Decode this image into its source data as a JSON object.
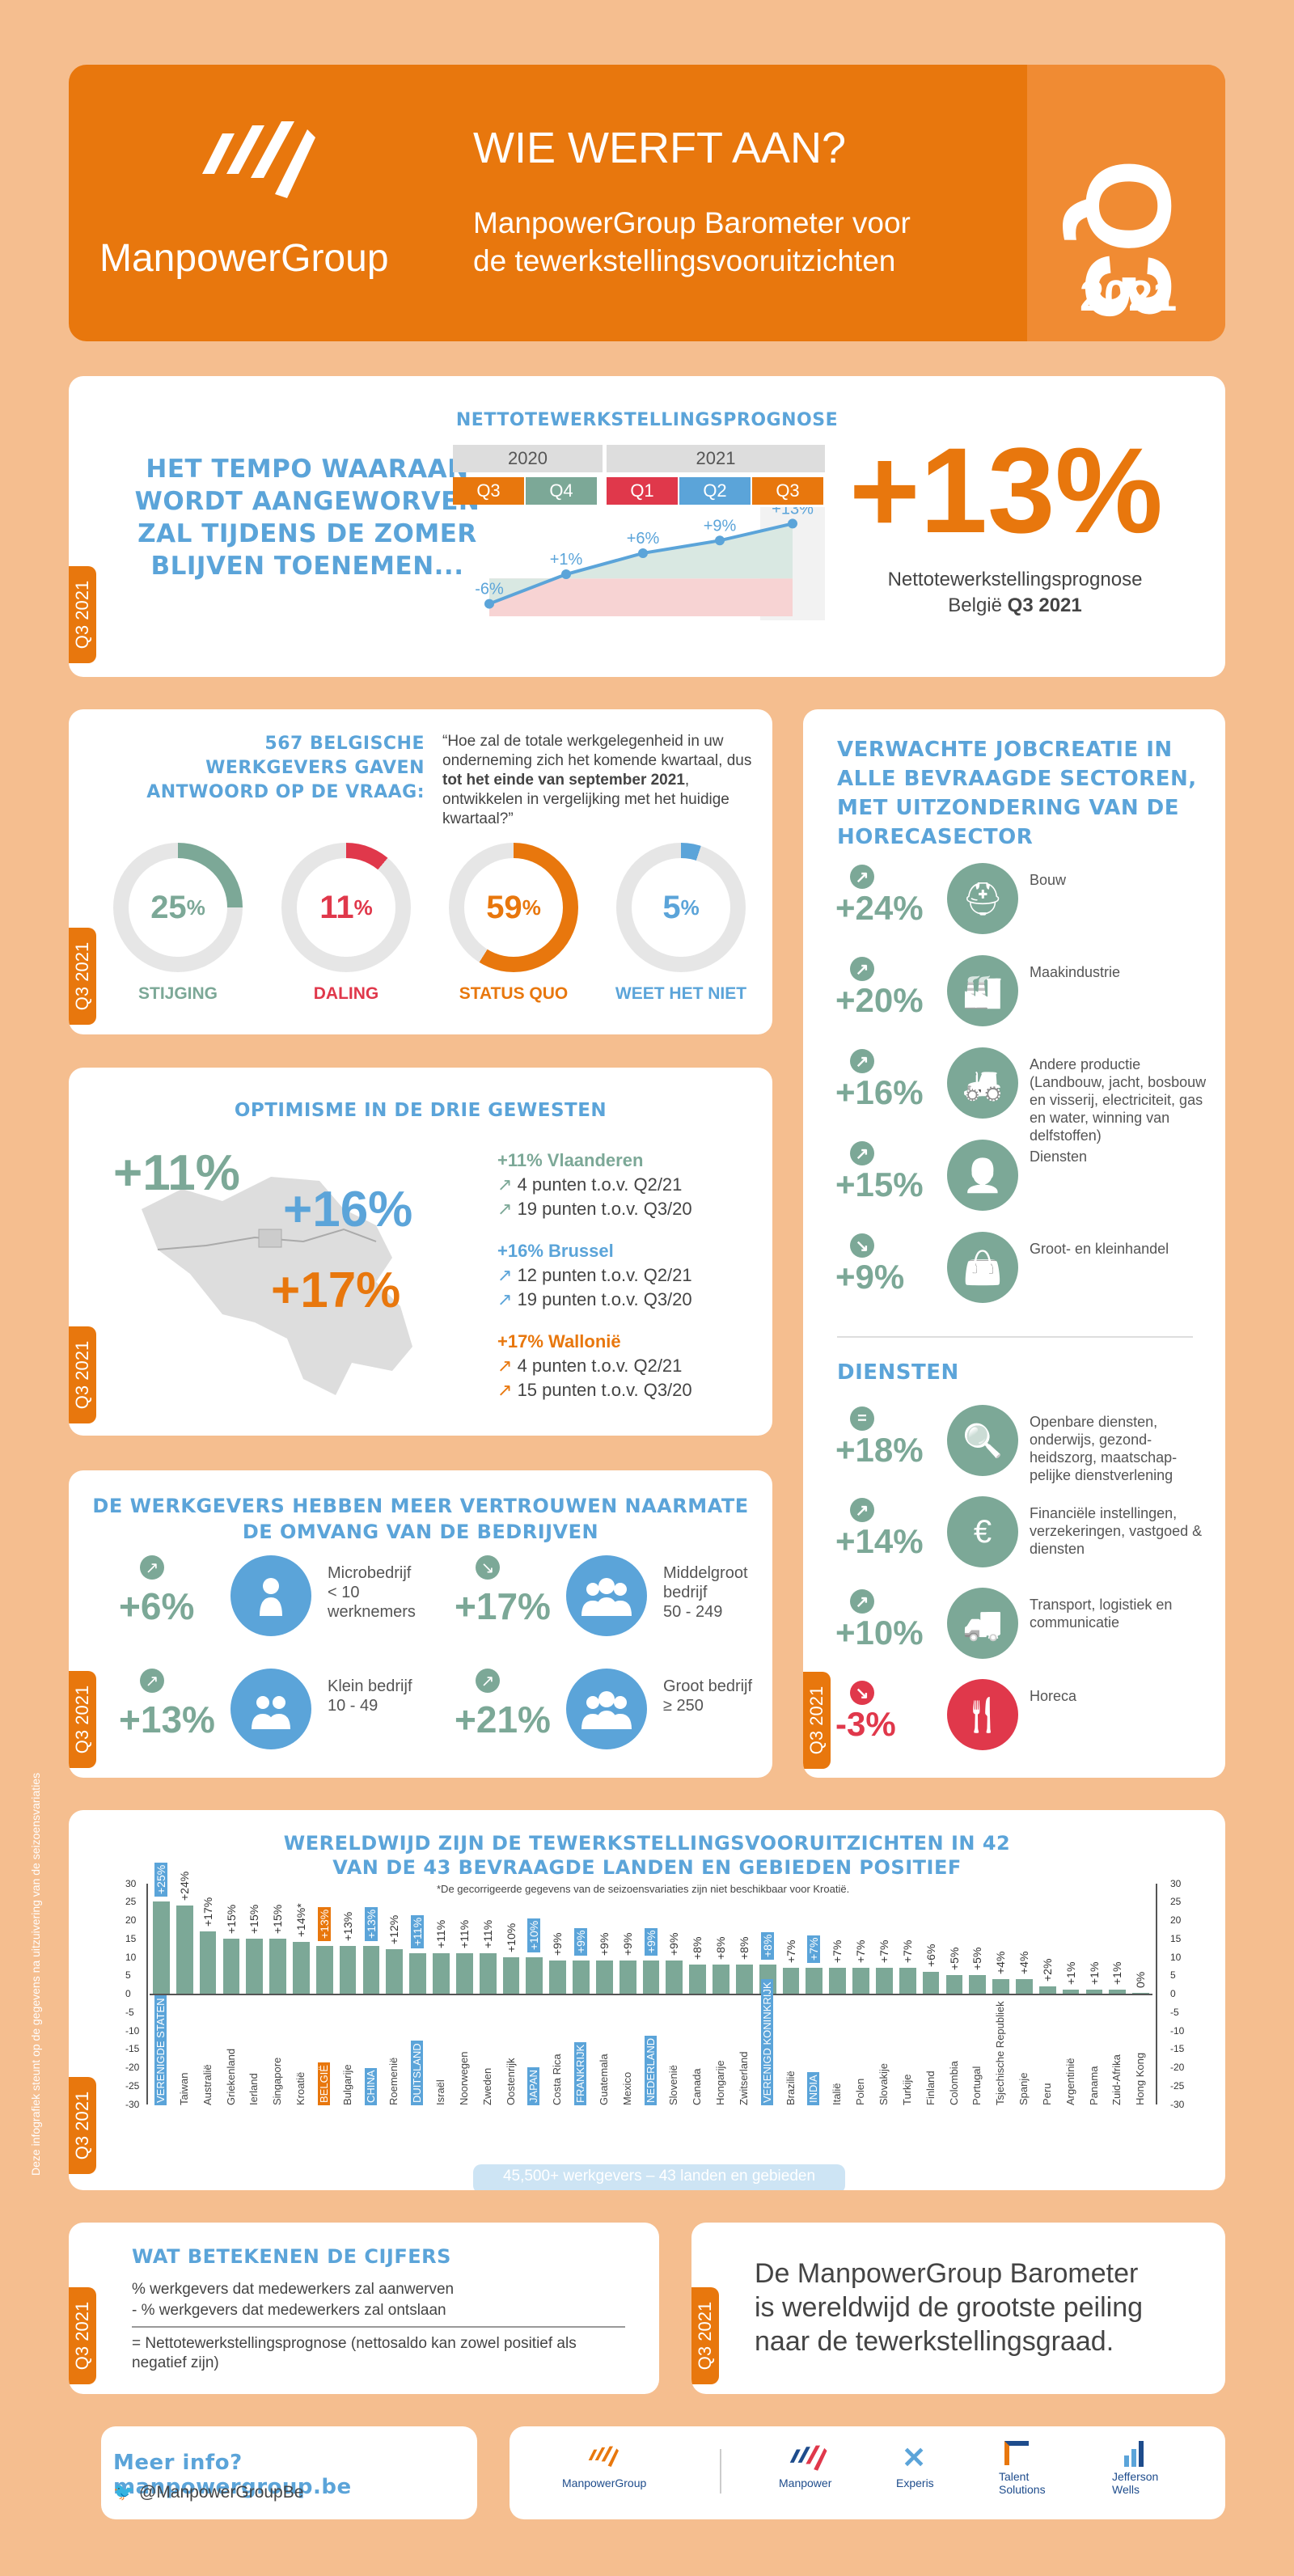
{
  "header": {
    "brand": "ManpowerGroup",
    "title": "WIE WERFT AAN?",
    "subtitle_line1": "ManpowerGroup Barometer voor",
    "subtitle_line2": "de tewerkstellingsvooruitzichten",
    "quarter": "Q3",
    "year": "2021"
  },
  "q3_tab": "Q3 2021",
  "forecast": {
    "tagline_1": "HET TEMPO WAARAAN",
    "tagline_2": "WORDT AANGEWORVEN",
    "tagline_3": "ZAL TIJDENS DE ZOMER",
    "tagline_4": "BLIJVEN TOENEMEN...",
    "chart_title": "NETTOTEWERKSTELLINGSPROGNOSE",
    "year_2020": "2020",
    "year_2021": "2021",
    "quarters": [
      "Q3",
      "Q4",
      "Q1",
      "Q2",
      "Q3"
    ],
    "point_labels": [
      "-6%",
      "+1%",
      "+6%",
      "+9%",
      "+13%"
    ],
    "big_value": "+13%",
    "big_caption_1": "Nettotewerkstellingsprognose",
    "big_caption_2a": "België ",
    "big_caption_2b": "Q3 2021"
  },
  "chart_data": [
    {
      "type": "line",
      "title": "NETTOTEWERKSTELLINGSPROGNOSE",
      "categories": [
        "Q3 2020",
        "Q4 2020",
        "Q1 2021",
        "Q2 2021",
        "Q3 2021"
      ],
      "values": [
        -6,
        1,
        6,
        9,
        13
      ]
    },
    {
      "type": "bar",
      "title": "WERELDWIJD ZIJN DE TEWERKSTELLINGSVOORUITZICHTEN IN 42 VAN DE 43 BEVRAAGDE LANDEN EN GEBIEDEN POSITIEF",
      "ylim": [
        -30,
        30
      ],
      "categories": [
        "VERENIGDE STATEN",
        "Taiwan",
        "Australië",
        "Griekenland",
        "Ierland",
        "Singapore",
        "Kroatië",
        "BELGIË",
        "Bulgarije",
        "CHINA",
        "Roemenië",
        "DUITSLAND",
        "Israël",
        "Noorwegen",
        "Zweden",
        "Oostenrijk",
        "JAPAN",
        "Costa Rica",
        "FRANKRIJK",
        "Guatemala",
        "Mexico",
        "NEDERLAND",
        "Slovenië",
        "Canada",
        "Hongarije",
        "Zwitserland",
        "VERENIGD KONINKRIJK",
        "Brazilië",
        "INDIA",
        "Italië",
        "Polen",
        "Slovakije",
        "Turkije",
        "Finland",
        "Colombia",
        "Portugal",
        "Tsjechische Republiek",
        "Spanje",
        "Peru",
        "Argentinië",
        "Panama",
        "Zuid-Afrika",
        "Hong Kong"
      ],
      "values": [
        25,
        24,
        17,
        15,
        15,
        15,
        14,
        13,
        13,
        13,
        12,
        11,
        11,
        11,
        11,
        10,
        10,
        9,
        9,
        9,
        9,
        9,
        9,
        8,
        8,
        8,
        8,
        7,
        7,
        7,
        7,
        7,
        7,
        6,
        5,
        5,
        4,
        4,
        2,
        1,
        1,
        1,
        0
      ],
      "value_labels": [
        "+25%",
        "+24%",
        "+17%",
        "+15%",
        "+15%",
        "+15%",
        "+14%*",
        "+13%",
        "+13%",
        "+13%",
        "+12%",
        "+11%",
        "+11%",
        "+11%",
        "+11%",
        "+10%",
        "+10%",
        "+9%",
        "+9%",
        "+9%",
        "+9%",
        "+9%",
        "+9%",
        "+8%",
        "+8%",
        "+8%",
        "+8%",
        "+7%",
        "+7%",
        "+7%",
        "+7%",
        "+7%",
        "+7%",
        "+6%",
        "+5%",
        "+5%",
        "+4%",
        "+4%",
        "+2%",
        "+1%",
        "+1%",
        "+1%",
        "0%"
      ],
      "highlight_blue": [
        0,
        9,
        11,
        16,
        18,
        21,
        26,
        28
      ],
      "highlight_orange": [
        7
      ]
    }
  ],
  "survey": {
    "title_1": "567 BELGISCHE",
    "title_2": "WERKGEVERS GAVEN",
    "title_3": "ANTWOORD OP DE VRAAG:",
    "question_a": "“Hoe zal de totale werkgelegenheid in uw onderneming zich het komende kwartaal, dus ",
    "question_b": "tot het einde van september 2021",
    "question_c": ", ontwikkelen in vergelijking met het huidige kwartaal?”",
    "items": [
      {
        "value": "25",
        "pct": "%",
        "label": "STIJGING",
        "fraction": 0.25,
        "color": "#7ca897"
      },
      {
        "value": "11",
        "pct": "%",
        "label": "DALING",
        "fraction": 0.11,
        "color": "#e0384b"
      },
      {
        "value": "59",
        "pct": "%",
        "label": "STATUS QUO",
        "fraction": 0.59,
        "color": "#e8770d"
      },
      {
        "value": "5",
        "pct": "%",
        "label": "WEET HET NIET",
        "fraction": 0.05,
        "color": "#5ba4d9"
      }
    ]
  },
  "regions": {
    "title": "OPTIMISME IN DE DRIE GEWESTEN",
    "map_flanders": "+11%",
    "map_brussels": "+16%",
    "map_wallonia": "+17%",
    "flanders_head": "+11% Vlaanderen",
    "flanders_1": "4 punten t.o.v. Q2/21",
    "flanders_2": "19 punten t.o.v. Q3/20",
    "brussels_head": "+16% Brussel",
    "brussels_1": "12 punten t.o.v. Q2/21",
    "brussels_2": "19 punten t.o.v. Q3/20",
    "wallonia_head": "+17% Wallonië",
    "wallonia_1": "4 punten t.o.v. Q2/21",
    "wallonia_2": "15 punten t.o.v. Q3/20"
  },
  "size": {
    "title_1": "DE WERKGEVERS HEBBEN MEER VERTROUWEN NAARMATE",
    "title_2": "DE OMVANG VAN DE BEDRIJVEN",
    "items": [
      {
        "value": "+6%",
        "l1": "Microbedrijf",
        "l2": "< 10",
        "l3": "werknemers"
      },
      {
        "value": "+17%",
        "l1": "Middelgroot",
        "l2": "bedrijf",
        "l3": "50 - 249"
      },
      {
        "value": "+13%",
        "l1": "Klein bedrijf",
        "l2": "10 - 49",
        "l3": ""
      },
      {
        "value": "+21%",
        "l1": "Groot bedrijf",
        "l2": "≥ 250",
        "l3": ""
      }
    ]
  },
  "sectors": {
    "title_1": "VERWACHTE JOBCREATIE IN",
    "title_2": "ALLE BEVRAAGDE SECTOREN,",
    "title_3": "MET UITZONDERING VAN DE",
    "title_4": "HORECASECTOR",
    "items": [
      {
        "value": "+24%",
        "text": "Bouw",
        "icon": "helmet-icon"
      },
      {
        "value": "+20%",
        "text": "Maakindustrie",
        "icon": "factory-icon"
      },
      {
        "value": "+16%",
        "text": "Andere productie (Landbouw, jacht, bosbouw en visserij, electriciteit, gas en water, winning van delfstoffen)",
        "icon": "tractor-icon"
      },
      {
        "value": "+15%",
        "text": "Diensten",
        "icon": "person-search-icon"
      },
      {
        "value": "+9%",
        "text": "Groot- en kleinhandel",
        "icon": "shopping-bag-icon"
      }
    ],
    "services_title": "DIENSTEN",
    "services": [
      {
        "value": "+18%",
        "text": "Openbare diensten, onderwijs, gezond-heidszorg, maatschap-pelijke dienstverlening",
        "icon": "magnifier-icon"
      },
      {
        "value": "+14%",
        "text": "Financiële instellingen, verzekeringen, vastgoed & diensten",
        "icon": "banknote-icon"
      },
      {
        "value": "+10%",
        "text": "Transport, logistiek en communicatie",
        "icon": "truck-icon"
      },
      {
        "value": "-3%",
        "text": "Horeca",
        "icon": "restaurant-icon"
      }
    ]
  },
  "world": {
    "title_1": "WERELDWIJD ZIJN DE TEWERKSTELLINGSVOORUITZICHTEN IN 42",
    "title_2": "VAN DE 43 BEVRAAGDE LANDEN EN GEBIEDEN POSITIEF",
    "note": "*De gecorrigeerde gegevens van de seizoensvariaties zijn niet beschikbaar voor Kroatië.",
    "footer": "45,500+ werkgevers – 43 landen en gebieden",
    "ticks": [
      "30",
      "25",
      "20",
      "15",
      "10",
      "5",
      "0",
      "-5",
      "-10",
      "-15",
      "-20",
      "-25",
      "-30"
    ]
  },
  "meaning": {
    "title": "WAT BETEKENEN DE CIJFERS",
    "line1": "% werkgevers dat medewerkers zal aanwerven",
    "line2": "- % werkgevers dat medewerkers zal ontslaan",
    "line3": "= Nettotewerkstellingsprognose (nettosaldo kan zowel positief als negatief zijn)"
  },
  "barometer": {
    "line1": "De ManpowerGroup Barometer",
    "line2": "is wereldwijd de grootste peiling",
    "line3": "naar de tewerkstellingsgraad."
  },
  "info": {
    "more": "Meer info? manpowergroup.be",
    "twitter": "@ManpowerGroupBe"
  },
  "brands": {
    "b1": "ManpowerGroup",
    "b2": "Manpower",
    "b3": "Experis",
    "b4a": "Talent",
    "b4b": "Solutions",
    "b5a": "Jefferson",
    "b5b": "Wells"
  },
  "side_note": "Deze infografiek steunt op de gegevens na uitzuivering van de seizoensvariaties",
  "colors": {
    "orange": "#e8770d",
    "blue": "#5ba4d9",
    "green": "#7ca897",
    "red": "#e0384b",
    "background": "#f5be8f"
  }
}
